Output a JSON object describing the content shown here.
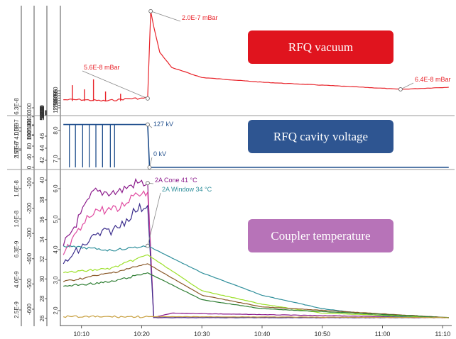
{
  "chart_data": {
    "type": "line",
    "x_ticks": [
      "10:10",
      "10:20",
      "10:30",
      "10:40",
      "10:50",
      "11:00",
      "11:10"
    ],
    "panels": [
      {
        "name": "vacuum",
        "label": "RFQ vacuum",
        "label_color": "#e0141e",
        "axes": [
          {
            "ticks": [
              "6.3E-8",
              "1.0E-7",
              "1.6E-7"
            ]
          },
          {
            "ticks": [
              "300",
              "400",
              "500",
              "600"
            ]
          },
          {
            "ticks": [
              "49.0",
              "50.0",
              "51.0",
              "52.0",
              "53.0",
              "54.0",
              "55.0",
              "56.0",
              "57.0"
            ]
          },
          {
            "ticks": [
              "9.0",
              "9.5",
              "10.0",
              "10.5",
              "11.0",
              "11.5",
              "12.0",
              "12.5"
            ]
          }
        ],
        "annotations": [
          "5.6E-8 mBar",
          "2.0E-7 mBar",
          "6.4E-8 mBar"
        ],
        "series": [
          {
            "color": "#e8232a",
            "points": [
              [
                "10:07",
                5.5e-08
              ],
              [
                "10:10",
                5.5e-08
              ],
              [
                "10:14",
                5.4e-08
              ],
              [
                "10:18",
                5.6e-08
              ],
              [
                "10:20",
                5.6e-08
              ],
              [
                "10:21",
                5.7e-08
              ],
              [
                "10:21.5",
                2e-07
              ],
              [
                "10:22",
                1.6e-07
              ],
              [
                "10:23",
                1.1e-07
              ],
              [
                "10:25",
                8.8e-08
              ],
              [
                "10:30",
                7.6e-08
              ],
              [
                "10:40",
                7.1e-08
              ],
              [
                "10:50",
                6.8e-08
              ],
              [
                "11:00",
                6.5e-08
              ],
              [
                "11:03",
                6.4e-08
              ],
              [
                "11:11",
                6.6e-08
              ]
            ]
          }
        ]
      },
      {
        "name": "voltage",
        "label": "RFQ cavity voltage",
        "label_color": "#2e5591",
        "axes": [
          {
            "ticks": [
              "2.5E-8",
              "4.0E-8"
            ]
          },
          {
            "ticks": [
              "0",
              "40",
              "80",
              "100",
              "140"
            ]
          },
          {
            "ticks": [
              "42",
              "44",
              "46"
            ]
          },
          {
            "ticks": [
              "7.0",
              "8.0"
            ]
          }
        ],
        "annotations": [
          "127 kV",
          "0 kV"
        ],
        "series": [
          {
            "color": "#1f4e8c",
            "points": [
              [
                "10:07",
                127
              ],
              [
                "10:14",
                127
              ],
              [
                "10:16",
                127
              ],
              [
                "10:21",
                127
              ],
              [
                "10:21.3",
                0
              ],
              [
                "11:11",
                0
              ]
            ]
          }
        ]
      },
      {
        "name": "coupler",
        "label": "Coupler temperature",
        "label_color": "#b773b8",
        "axes": [
          {
            "ticks": [
              "2.5E-9",
              "4.0E-9",
              "6.3E-9",
              "1.0E-8",
              "1.6E-8"
            ]
          },
          {
            "ticks": [
              "-600",
              "-500",
              "-400",
              "-300",
              "-200",
              "-100"
            ]
          },
          {
            "ticks": [
              "26",
              "28",
              "30",
              "32",
              "34",
              "36",
              "38",
              "40"
            ]
          },
          {
            "ticks": [
              "2.0",
              "3.0",
              "4.0",
              "5.0",
              "6.0"
            ]
          }
        ],
        "annotations": [
          "2A Cone 41 °C",
          "2A Window 34 °C"
        ],
        "series": [
          {
            "color": "#8b1a8b",
            "points": [
              [
                "10:07",
                34
              ],
              [
                "10:12",
                40
              ],
              [
                "10:16",
                40
              ],
              [
                "10:19",
                41
              ],
              [
                "10:21",
                41
              ],
              [
                "10:22",
                26
              ],
              [
                "10:25",
                26.5
              ],
              [
                "11:11",
                26
              ]
            ]
          },
          {
            "color": "#e04aa0",
            "points": [
              [
                "10:07",
                33
              ],
              [
                "10:12",
                38
              ],
              [
                "10:16",
                38
              ],
              [
                "10:19",
                40
              ],
              [
                "10:21",
                40
              ],
              [
                "10:22",
                26
              ],
              [
                "11:11",
                26
              ]
            ]
          },
          {
            "color": "#3a2c8c",
            "points": [
              [
                "10:07",
                32
              ],
              [
                "10:12",
                35
              ],
              [
                "10:16",
                36
              ],
              [
                "10:19",
                38
              ],
              [
                "10:21",
                38.5
              ],
              [
                "10:22",
                26
              ],
              [
                "11:11",
                26
              ]
            ]
          },
          {
            "color": "#2f8f9b",
            "points": [
              [
                "10:07",
                34
              ],
              [
                "10:15",
                33.5
              ],
              [
                "10:21",
                34
              ],
              [
                "10:30",
                31
              ],
              [
                "10:40",
                28.5
              ],
              [
                "10:50",
                27
              ],
              [
                "11:00",
                26.2
              ],
              [
                "11:11",
                26
              ]
            ]
          },
          {
            "color": "#9de02a",
            "points": [
              [
                "10:07",
                31
              ],
              [
                "10:15",
                31.5
              ],
              [
                "10:21",
                33
              ],
              [
                "10:30",
                29
              ],
              [
                "10:40",
                27.5
              ],
              [
                "10:50",
                26.5
              ],
              [
                "11:11",
                26
              ]
            ]
          },
          {
            "color": "#8b5a2b",
            "points": [
              [
                "10:07",
                30
              ],
              [
                "10:15",
                31
              ],
              [
                "10:21",
                32
              ],
              [
                "10:30",
                28.5
              ],
              [
                "10:40",
                27.2
              ],
              [
                "11:11",
                26
              ]
            ]
          },
          {
            "color": "#2e7d32",
            "points": [
              [
                "10:07",
                29.5
              ],
              [
                "10:15",
                30
              ],
              [
                "10:21",
                31
              ],
              [
                "10:30",
                28
              ],
              [
                "10:40",
                27
              ],
              [
                "11:11",
                26
              ]
            ]
          },
          {
            "color": "#c8a040",
            "points": [
              [
                "10:07",
                26.1
              ],
              [
                "10:30",
                26.1
              ],
              [
                "11:11",
                26
              ]
            ]
          }
        ]
      }
    ]
  }
}
